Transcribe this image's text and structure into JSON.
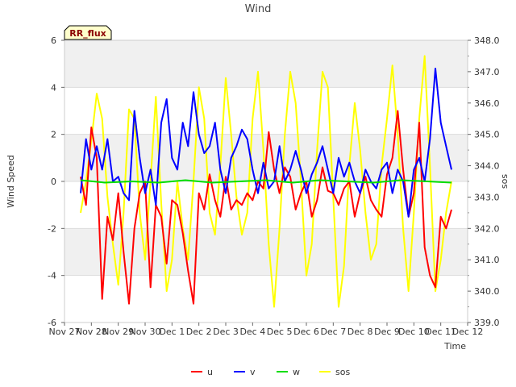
{
  "chart_data": {
    "type": "line",
    "title": "Wind",
    "badge": "RR_flux",
    "xlabel": "Time",
    "ylabel": "Wind Speed",
    "y2label": "sos",
    "x_ticks": [
      "Nov 27",
      "Nov 28",
      "Nov 29",
      "Nov 30",
      "Dec 1",
      "Dec 2",
      "Dec 3",
      "Dec 4",
      "Dec 5",
      "Dec 6",
      "Dec 7",
      "Dec 8",
      "Dec 9",
      "Dec 10",
      "Dec 11",
      "Dec 12"
    ],
    "xlim": [
      0,
      15
    ],
    "ylim": [
      -6,
      6
    ],
    "y_ticks": [
      "-6",
      "-4",
      "-2",
      "0",
      "2",
      "4",
      "6"
    ],
    "y2lim": [
      339.0,
      348.0
    ],
    "y2_ticks": [
      "339.0",
      "340.0",
      "341.0",
      "342.0",
      "343.0",
      "344.0",
      "345.0",
      "346.0",
      "347.0",
      "348.0"
    ],
    "series": [
      {
        "name": "u",
        "color": "#ff0000",
        "axis": "left",
        "x": [
          0.6,
          0.8,
          1.0,
          1.2,
          1.4,
          1.6,
          1.8,
          2.0,
          2.2,
          2.4,
          2.6,
          2.8,
          3.0,
          3.2,
          3.4,
          3.6,
          3.8,
          4.0,
          4.2,
          4.4,
          4.6,
          4.8,
          5.0,
          5.2,
          5.4,
          5.6,
          5.8,
          6.0,
          6.2,
          6.4,
          6.6,
          6.8,
          7.0,
          7.2,
          7.4,
          7.6,
          7.8,
          8.0,
          8.2,
          8.4,
          8.6,
          8.8,
          9.0,
          9.2,
          9.4,
          9.6,
          9.8,
          10.0,
          10.2,
          10.4,
          10.6,
          10.8,
          11.0,
          11.2,
          11.4,
          11.6,
          11.8,
          12.0,
          12.2,
          12.4,
          12.6,
          12.8,
          13.0,
          13.2,
          13.4,
          13.6,
          13.8,
          14.0,
          14.2,
          14.4
        ],
        "values": [
          0.2,
          -1.0,
          2.3,
          1.0,
          -5.0,
          -1.5,
          -2.5,
          -0.5,
          -3.0,
          -5.2,
          -2.0,
          -0.5,
          0.0,
          -4.5,
          -1.0,
          -1.5,
          -3.5,
          -0.8,
          -1.0,
          -2.2,
          -3.8,
          -5.2,
          -0.5,
          -1.2,
          0.3,
          -0.8,
          -1.5,
          0.2,
          -1.2,
          -0.8,
          -1.0,
          -0.5,
          -0.8,
          0.0,
          -0.3,
          2.1,
          0.5,
          -0.5,
          0.6,
          0.2,
          -1.2,
          -0.5,
          0.0,
          -1.5,
          -0.8,
          0.6,
          -0.4,
          -0.5,
          -1.0,
          -0.3,
          0.0,
          -1.5,
          -0.5,
          0.2,
          -0.8,
          -1.2,
          -1.5,
          0.3,
          1.0,
          3.0,
          0.5,
          -1.5,
          -0.5,
          2.5,
          -2.8,
          -4.0,
          -4.5,
          -1.5,
          -2.0,
          -1.2
        ]
      },
      {
        "name": "v",
        "color": "#0000ff",
        "axis": "left",
        "x": [
          0.6,
          0.8,
          1.0,
          1.2,
          1.4,
          1.6,
          1.8,
          2.0,
          2.2,
          2.4,
          2.6,
          2.8,
          3.0,
          3.2,
          3.4,
          3.6,
          3.8,
          4.0,
          4.2,
          4.4,
          4.6,
          4.8,
          5.0,
          5.2,
          5.4,
          5.6,
          5.8,
          6.0,
          6.2,
          6.4,
          6.6,
          6.8,
          7.0,
          7.2,
          7.4,
          7.6,
          7.8,
          8.0,
          8.2,
          8.4,
          8.6,
          8.8,
          9.0,
          9.2,
          9.4,
          9.6,
          9.8,
          10.0,
          10.2,
          10.4,
          10.6,
          10.8,
          11.0,
          11.2,
          11.4,
          11.6,
          11.8,
          12.0,
          12.2,
          12.4,
          12.6,
          12.8,
          13.0,
          13.2,
          13.4,
          13.6,
          13.8,
          14.0,
          14.2,
          14.4
        ],
        "values": [
          -0.5,
          1.8,
          0.5,
          1.5,
          0.5,
          1.8,
          0.0,
          0.2,
          -0.5,
          -0.8,
          3.0,
          1.0,
          -0.5,
          0.5,
          -1.0,
          2.5,
          3.5,
          1.0,
          0.5,
          2.5,
          1.5,
          3.8,
          2.0,
          1.2,
          1.5,
          2.5,
          0.5,
          -0.5,
          1.0,
          1.5,
          2.2,
          1.8,
          0.5,
          -0.5,
          0.8,
          -0.3,
          0.0,
          1.5,
          0.0,
          0.5,
          1.3,
          0.5,
          -0.5,
          0.3,
          0.8,
          1.5,
          0.5,
          -0.5,
          1.0,
          0.2,
          0.8,
          0.0,
          -0.5,
          0.5,
          0.0,
          -0.3,
          0.5,
          0.8,
          -0.5,
          0.5,
          0.0,
          -1.5,
          0.5,
          1.0,
          0.0,
          1.8,
          4.8,
          2.5,
          1.5,
          0.5
        ]
      },
      {
        "name": "w",
        "color": "#00dd00",
        "axis": "left",
        "x": [
          0.6,
          1.5,
          2.5,
          3.5,
          4.5,
          5.5,
          6.5,
          7.5,
          8.5,
          9.5,
          10.5,
          11.5,
          12.5,
          13.5,
          14.4
        ],
        "values": [
          0.05,
          -0.05,
          0.0,
          -0.05,
          0.05,
          -0.05,
          0.0,
          0.05,
          -0.05,
          0.05,
          0.0,
          -0.05,
          0.05,
          0.0,
          -0.05
        ]
      },
      {
        "name": "sos",
        "color": "#ffff00",
        "axis": "right",
        "x": [
          0.6,
          0.8,
          1.0,
          1.2,
          1.4,
          1.6,
          1.8,
          2.0,
          2.2,
          2.4,
          2.6,
          2.8,
          3.0,
          3.2,
          3.4,
          3.6,
          3.8,
          4.0,
          4.2,
          4.4,
          4.6,
          4.8,
          5.0,
          5.2,
          5.4,
          5.6,
          5.8,
          6.0,
          6.2,
          6.4,
          6.6,
          6.8,
          7.0,
          7.2,
          7.4,
          7.6,
          7.8,
          8.0,
          8.2,
          8.4,
          8.6,
          8.8,
          9.0,
          9.2,
          9.4,
          9.6,
          9.8,
          10.0,
          10.2,
          10.4,
          10.6,
          10.8,
          11.0,
          11.2,
          11.4,
          11.6,
          11.8,
          12.0,
          12.2,
          12.4,
          12.6,
          12.8,
          13.0,
          13.2,
          13.4,
          13.6,
          13.8,
          14.0,
          14.2,
          14.4
        ],
        "values": [
          342.5,
          343.5,
          344.8,
          346.3,
          345.5,
          343.0,
          341.5,
          340.2,
          342.5,
          345.8,
          345.5,
          342.5,
          341.0,
          343.5,
          346.2,
          342.8,
          340.0,
          341.0,
          343.5,
          342.0,
          341.0,
          343.5,
          346.5,
          345.5,
          342.5,
          341.8,
          344.0,
          346.8,
          345.0,
          343.0,
          341.8,
          342.5,
          345.5,
          347.0,
          344.5,
          341.5,
          339.5,
          342.0,
          345.0,
          347.0,
          346.0,
          343.5,
          340.5,
          341.5,
          344.5,
          347.0,
          346.5,
          343.0,
          339.5,
          340.8,
          344.0,
          346.0,
          344.5,
          342.5,
          341.0,
          341.5,
          344.0,
          345.5,
          347.2,
          345.0,
          342.0,
          340.0,
          342.5,
          345.5,
          347.5,
          344.0,
          340.0,
          341.0,
          342.5,
          343.5
        ]
      }
    ]
  }
}
